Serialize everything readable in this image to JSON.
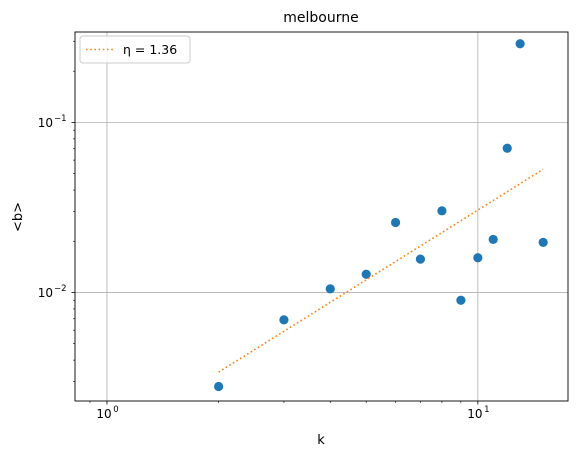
{
  "chart_data": {
    "type": "scatter",
    "title": "melbourne",
    "xlabel": "k",
    "ylabel": "<b>",
    "xscale": "log",
    "yscale": "log",
    "xlim": [
      0.82,
      17.5
    ],
    "ylim": [
      0.0023,
      0.34
    ],
    "grid": true,
    "legend_position": "upper-left",
    "x_ticks": [
      {
        "value": 1,
        "base": "10",
        "exp": "0"
      },
      {
        "value": 10,
        "base": "10",
        "exp": "1"
      }
    ],
    "y_ticks": [
      {
        "value": 0.01,
        "base": "10",
        "exp": "−2"
      },
      {
        "value": 0.1,
        "base": "10",
        "exp": "−1"
      }
    ],
    "series": [
      {
        "kind": "scatter",
        "color": "#1f77b4",
        "x": [
          2,
          3,
          4,
          5,
          6,
          7,
          8,
          9,
          10,
          11,
          12,
          13,
          15
        ],
        "y": [
          0.0028,
          0.0069,
          0.0105,
          0.0128,
          0.0258,
          0.0157,
          0.0302,
          0.009,
          0.016,
          0.0205,
          0.0705,
          0.29,
          0.0197
        ]
      },
      {
        "kind": "line",
        "name": "η = 1.36",
        "color": "#ff7f0e",
        "style": "dotted",
        "x": [
          2,
          15
        ],
        "y": [
          0.0034,
          0.053
        ]
      }
    ]
  }
}
